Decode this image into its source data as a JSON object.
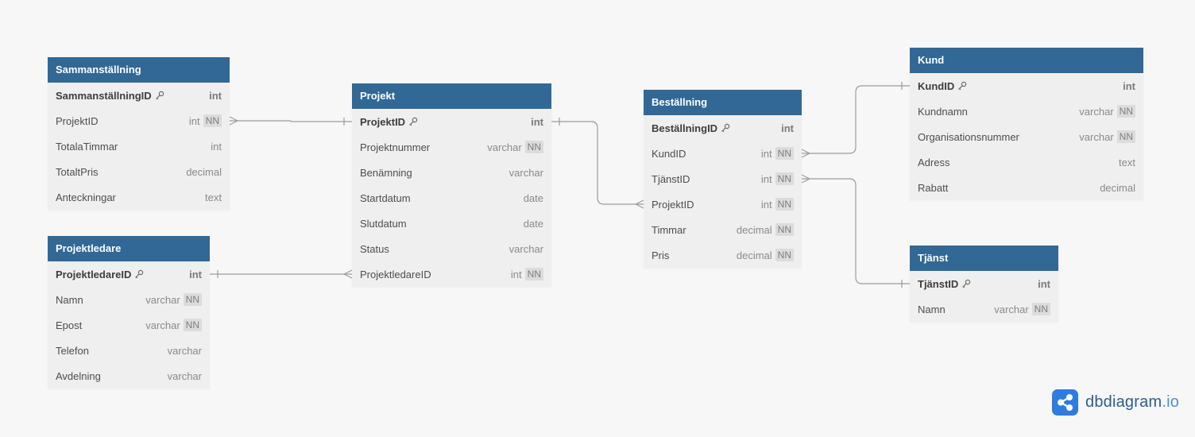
{
  "tables": [
    {
      "id": "sammanstallning",
      "name": "Sammanställning",
      "fields": [
        {
          "name": "SammanställningID",
          "type": "int",
          "pk": true,
          "nn": false
        },
        {
          "name": "ProjektID",
          "type": "int",
          "pk": false,
          "nn": true
        },
        {
          "name": "TotalaTimmar",
          "type": "int",
          "pk": false,
          "nn": false
        },
        {
          "name": "TotaltPris",
          "type": "decimal",
          "pk": false,
          "nn": false
        },
        {
          "name": "Anteckningar",
          "type": "text",
          "pk": false,
          "nn": false
        }
      ]
    },
    {
      "id": "projektledare",
      "name": "Projektledare",
      "fields": [
        {
          "name": "ProjektledareID",
          "type": "int",
          "pk": true,
          "nn": false
        },
        {
          "name": "Namn",
          "type": "varchar",
          "pk": false,
          "nn": true
        },
        {
          "name": "Epost",
          "type": "varchar",
          "pk": false,
          "nn": true
        },
        {
          "name": "Telefon",
          "type": "varchar",
          "pk": false,
          "nn": false
        },
        {
          "name": "Avdelning",
          "type": "varchar",
          "pk": false,
          "nn": false
        }
      ]
    },
    {
      "id": "projekt",
      "name": "Projekt",
      "fields": [
        {
          "name": "ProjektID",
          "type": "int",
          "pk": true,
          "nn": false
        },
        {
          "name": "Projektnummer",
          "type": "varchar",
          "pk": false,
          "nn": true
        },
        {
          "name": "Benämning",
          "type": "varchar",
          "pk": false,
          "nn": false
        },
        {
          "name": "Startdatum",
          "type": "date",
          "pk": false,
          "nn": false
        },
        {
          "name": "Slutdatum",
          "type": "date",
          "pk": false,
          "nn": false
        },
        {
          "name": "Status",
          "type": "varchar",
          "pk": false,
          "nn": false
        },
        {
          "name": "ProjektledareID",
          "type": "int",
          "pk": false,
          "nn": true
        }
      ]
    },
    {
      "id": "bestallning",
      "name": "Beställning",
      "fields": [
        {
          "name": "BeställningID",
          "type": "int",
          "pk": true,
          "nn": false
        },
        {
          "name": "KundID",
          "type": "int",
          "pk": false,
          "nn": true
        },
        {
          "name": "TjänstID",
          "type": "int",
          "pk": false,
          "nn": true
        },
        {
          "name": "ProjektID",
          "type": "int",
          "pk": false,
          "nn": true
        },
        {
          "name": "Timmar",
          "type": "decimal",
          "pk": false,
          "nn": true
        },
        {
          "name": "Pris",
          "type": "decimal",
          "pk": false,
          "nn": true
        }
      ]
    },
    {
      "id": "kund",
      "name": "Kund",
      "fields": [
        {
          "name": "KundID",
          "type": "int",
          "pk": true,
          "nn": false
        },
        {
          "name": "Kundnamn",
          "type": "varchar",
          "pk": false,
          "nn": true
        },
        {
          "name": "Organisationsnummer",
          "type": "varchar",
          "pk": false,
          "nn": true
        },
        {
          "name": "Adress",
          "type": "text",
          "pk": false,
          "nn": false
        },
        {
          "name": "Rabatt",
          "type": "decimal",
          "pk": false,
          "nn": false
        }
      ]
    },
    {
      "id": "tjanst",
      "name": "Tjänst",
      "fields": [
        {
          "name": "TjänstID",
          "type": "int",
          "pk": true,
          "nn": false
        },
        {
          "name": "Namn",
          "type": "varchar",
          "pk": false,
          "nn": true
        }
      ]
    }
  ],
  "relationships": [
    {
      "from": "sammanstallning.ProjektID",
      "from_card": "many",
      "to": "projekt.ProjektID",
      "to_card": "one"
    },
    {
      "from": "projekt.ProjektledareID",
      "from_card": "many",
      "to": "projektledare.ProjektledareID",
      "to_card": "one"
    },
    {
      "from": "bestallning.ProjektID",
      "from_card": "many",
      "to": "projekt.ProjektID",
      "to_card": "one"
    },
    {
      "from": "bestallning.KundID",
      "from_card": "many",
      "to": "kund.KundID",
      "to_card": "one"
    },
    {
      "from": "bestallning.TjänstID",
      "from_card": "many",
      "to": "tjanst.TjänstID",
      "to_card": "one"
    }
  ],
  "nn_label": "NN",
  "brand": {
    "name": "dbdiagram",
    "tld": ".io"
  },
  "colors": {
    "header": "#316896",
    "row_bg": "#efefef",
    "line": "#9b9b9b",
    "background": "#f7f7f8",
    "brand": "#2c5d8f",
    "brand_accent": "#4a90d9"
  }
}
